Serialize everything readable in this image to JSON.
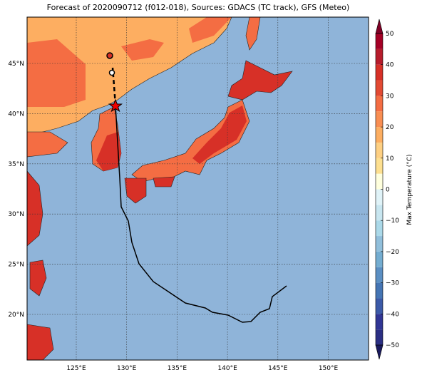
{
  "title": "Forecast of 2020090712 (f012-018), Sources: GDACS (TC track), GFS (Meteo)",
  "map": {
    "lon_ticks": [
      "125°E",
      "130°E",
      "135°E",
      "140°E",
      "145°E",
      "150°E"
    ],
    "lat_ticks": [
      "45°N",
      "40°N",
      "35°N",
      "30°N",
      "25°N",
      "20°N"
    ]
  },
  "colorbar": {
    "label": "Max Temperature (°C)",
    "lim": [
      -50,
      50
    ],
    "ticks": [
      {
        "value": -50,
        "label": "−50"
      },
      {
        "value": -40,
        "label": "−40"
      },
      {
        "value": -30,
        "label": "−30"
      },
      {
        "value": -20,
        "label": "−20"
      },
      {
        "value": -10,
        "label": "−10"
      },
      0,
      10,
      20,
      30,
      40,
      50
    ],
    "colors": [
      "#2b2f84",
      "#313695",
      "#3c5aa8",
      "#4575b4",
      "#5b8fc3",
      "#74add1",
      "#91bfdb",
      "#abd9e9",
      "#c8e6f0",
      "#e0f3f8",
      "#ffffdd",
      "#fee090",
      "#fed083",
      "#fdae61",
      "#f98e52",
      "#f46d43",
      "#e34a33",
      "#d73027",
      "#b71c2c",
      "#a50026"
    ]
  }
}
